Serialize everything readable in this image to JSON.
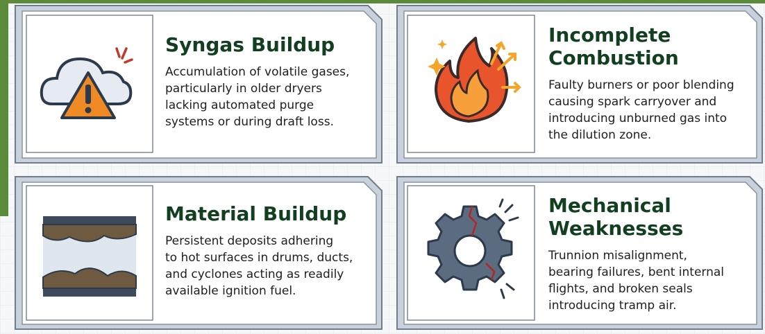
{
  "cards": [
    {
      "title": [
        "Syngas Buildup"
      ],
      "description": [
        "Accumulation of volatile gases,",
        "particularly in older dryers",
        "lacking automated purge",
        "systems or during draft loss."
      ]
    },
    {
      "title": [
        "Incomplete",
        "Combustion"
      ],
      "description": [
        "Faulty burners or poor blending",
        "causing spark carryover and",
        "introducing unburned gas into",
        "the dilution zone."
      ]
    },
    {
      "title": [
        "Material Buildup"
      ],
      "description": [
        "Persistent deposits adhering",
        "to hot surfaces in drums, ducts,",
        "and cyclones acting as readily",
        "available ignition fuel."
      ]
    },
    {
      "title": [
        "Mechanical",
        "Weaknesses"
      ],
      "description": [
        "Trunnion misalignment,",
        "bearing failures, bent internal",
        "flights, and broken seals",
        "introducing tramp air."
      ]
    }
  ]
}
